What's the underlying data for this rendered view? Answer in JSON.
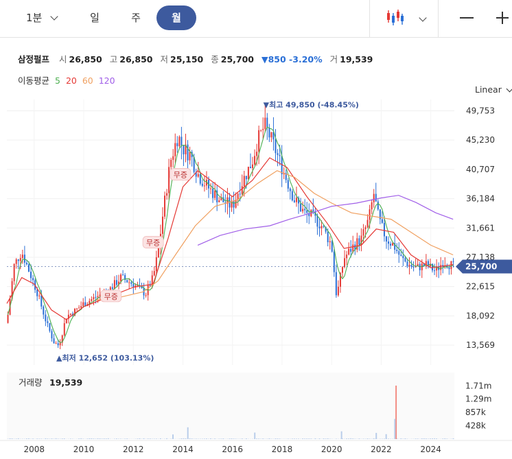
{
  "toolbar": {
    "interval_dropdown": "1분",
    "tabs": [
      "일",
      "주",
      "월"
    ],
    "active_tab": "월",
    "chart_type_icon": "candlestick-icon",
    "zoom_out_icon": "minus-icon",
    "zoom_in_icon": "plus-icon"
  },
  "stock": {
    "name": "삼정펄프",
    "open_label": "시",
    "open": "26,850",
    "high_label": "고",
    "high": "26,850",
    "low_label": "저",
    "low": "25,150",
    "close_label": "종",
    "close": "25,700",
    "change": "▼850 -3.20%",
    "volume_label": "거",
    "volume": "19,539"
  },
  "moving_average": {
    "label": "이동평균",
    "periods": [
      "5",
      "20",
      "60",
      "120"
    ],
    "colors": [
      "#4caf50",
      "#e53935",
      "#f0a060",
      "#a05ee8"
    ]
  },
  "scale_dropdown": "Linear",
  "colors": {
    "up": "#e53935",
    "down": "#2a6fd6",
    "accent": "#3d5a9e",
    "volume": "#b9cdea"
  },
  "chart_data": {
    "type": "candlestick",
    "title": "",
    "y_ticks": [
      "49,753",
      "45,230",
      "40,707",
      "36,184",
      "31,661",
      "27,138",
      "22,615",
      "18,092",
      "13,569"
    ],
    "y_tick_values": [
      49753,
      45230,
      40707,
      36184,
      31661,
      27138,
      22615,
      18092,
      13569
    ],
    "ylim": [
      10500,
      51500
    ],
    "x_ticks": [
      "2008",
      "2010",
      "2012",
      "2014",
      "2016",
      "2018",
      "2020",
      "2022",
      "2024"
    ],
    "x_tick_values": [
      2008,
      2010,
      2012,
      2014,
      2016,
      2018,
      2020,
      2022,
      2024
    ],
    "xlim": [
      2006.9,
      2024.95
    ],
    "current_price_label": "25,700",
    "current_price": 25700,
    "annotations": [
      {
        "text": "▼최고 49,850 (-48.45%)",
        "x": 2017.3,
        "y": 49850
      },
      {
        "text": "▲최저 12,652 (103.13%)",
        "x": 2008.95,
        "y": 12652
      },
      {
        "text": "무증",
        "x": 2013.9,
        "y": 39800
      },
      {
        "text": "무증",
        "x": 2012.8,
        "y": 29300
      },
      {
        "text": "무증",
        "x": 2011.1,
        "y": 21000
      }
    ],
    "price_path": [
      [
        2006.9,
        17000
      ],
      [
        2007.2,
        26000
      ],
      [
        2007.5,
        28000
      ],
      [
        2007.8,
        25000
      ],
      [
        2008.1,
        22000
      ],
      [
        2008.5,
        17000
      ],
      [
        2008.8,
        14000
      ],
      [
        2009.0,
        13500
      ],
      [
        2009.3,
        18000
      ],
      [
        2009.7,
        19000
      ],
      [
        2010.0,
        20000
      ],
      [
        2010.5,
        21000
      ],
      [
        2011.0,
        22000
      ],
      [
        2011.5,
        24000
      ],
      [
        2012.0,
        23000
      ],
      [
        2012.5,
        21500
      ],
      [
        2012.8,
        24000
      ],
      [
        2013.0,
        28000
      ],
      [
        2013.2,
        34000
      ],
      [
        2013.5,
        42000
      ],
      [
        2013.8,
        46000
      ],
      [
        2014.0,
        44000
      ],
      [
        2014.3,
        43000
      ],
      [
        2014.6,
        40000
      ],
      [
        2015.0,
        38000
      ],
      [
        2015.5,
        36000
      ],
      [
        2016.0,
        35000
      ],
      [
        2016.3,
        38000
      ],
      [
        2016.8,
        42000
      ],
      [
        2017.0,
        45000
      ],
      [
        2017.3,
        47500
      ],
      [
        2017.6,
        45000
      ],
      [
        2017.9,
        42000
      ],
      [
        2018.2,
        39000
      ],
      [
        2018.5,
        36000
      ],
      [
        2018.9,
        34000
      ],
      [
        2019.2,
        33500
      ],
      [
        2019.6,
        32000
      ],
      [
        2020.0,
        29000
      ],
      [
        2020.2,
        21000
      ],
      [
        2020.5,
        27000
      ],
      [
        2020.9,
        29000
      ],
      [
        2021.2,
        30000
      ],
      [
        2021.5,
        33000
      ],
      [
        2021.7,
        37000
      ],
      [
        2021.9,
        33000
      ],
      [
        2022.2,
        30000
      ],
      [
        2022.5,
        29000
      ],
      [
        2022.8,
        27000
      ],
      [
        2023.1,
        26000
      ],
      [
        2023.4,
        25500
      ],
      [
        2023.8,
        26000
      ],
      [
        2024.2,
        25000
      ],
      [
        2024.5,
        26500
      ],
      [
        2024.95,
        25700
      ]
    ],
    "ma_paths": [
      {
        "name": "20",
        "points": [
          [
            2006.9,
            20000
          ],
          [
            2007.5,
            24000
          ],
          [
            2008.0,
            23000
          ],
          [
            2008.7,
            19000
          ],
          [
            2009.3,
            17500
          ],
          [
            2010.0,
            19500
          ],
          [
            2011.0,
            21000
          ],
          [
            2012.0,
            22500
          ],
          [
            2012.8,
            23000
          ],
          [
            2013.4,
            30000
          ],
          [
            2014.0,
            38000
          ],
          [
            2014.6,
            40500
          ],
          [
            2015.3,
            38500
          ],
          [
            2016.0,
            36500
          ],
          [
            2016.8,
            39000
          ],
          [
            2017.5,
            42500
          ],
          [
            2018.2,
            41000
          ],
          [
            2019.0,
            36500
          ],
          [
            2019.8,
            32500
          ],
          [
            2020.5,
            28500
          ],
          [
            2021.2,
            29000
          ],
          [
            2021.8,
            31500
          ],
          [
            2022.5,
            31000
          ],
          [
            2023.2,
            27500
          ],
          [
            2024.0,
            25500
          ],
          [
            2024.9,
            26000
          ]
        ]
      },
      {
        "name": "60",
        "points": [
          [
            2010.5,
            20500
          ],
          [
            2011.5,
            21000
          ],
          [
            2012.4,
            21800
          ],
          [
            2013.0,
            23500
          ],
          [
            2013.7,
            27500
          ],
          [
            2014.5,
            32000
          ],
          [
            2015.3,
            35000
          ],
          [
            2016.2,
            36000
          ],
          [
            2017.0,
            38500
          ],
          [
            2017.8,
            40500
          ],
          [
            2018.5,
            39500
          ],
          [
            2019.3,
            37000
          ],
          [
            2020.0,
            35500
          ],
          [
            2020.8,
            34000
          ],
          [
            2021.6,
            33500
          ],
          [
            2022.4,
            33000
          ],
          [
            2023.2,
            31000
          ],
          [
            2024.0,
            29000
          ],
          [
            2024.9,
            27500
          ]
        ]
      },
      {
        "name": "120",
        "points": [
          [
            2014.6,
            29000
          ],
          [
            2015.5,
            30500
          ],
          [
            2016.5,
            31500
          ],
          [
            2017.5,
            32000
          ],
          [
            2018.3,
            33000
          ],
          [
            2019.2,
            34000
          ],
          [
            2020.0,
            35000
          ],
          [
            2021.0,
            35500
          ],
          [
            2022.0,
            36300
          ],
          [
            2022.7,
            36700
          ],
          [
            2023.4,
            35600
          ],
          [
            2024.2,
            34000
          ],
          [
            2024.9,
            33000
          ]
        ]
      }
    ],
    "volume": {
      "label": "거래량",
      "value": "19,539",
      "y_ticks": [
        "1.71m",
        "1.29m",
        "857k",
        "428k"
      ],
      "y_tick_values": [
        1710000,
        1290000,
        857000,
        428000
      ],
      "ylim": [
        0,
        2140000
      ],
      "spikes": [
        [
          2022.6,
          1720000
        ],
        [
          2022.55,
          650000
        ],
        [
          2014.2,
          380000
        ],
        [
          2020.4,
          250000
        ],
        [
          2021.8,
          200000
        ],
        [
          2016.9,
          210000
        ],
        [
          2022.2,
          160000
        ],
        [
          2013.6,
          150000
        ]
      ]
    }
  }
}
